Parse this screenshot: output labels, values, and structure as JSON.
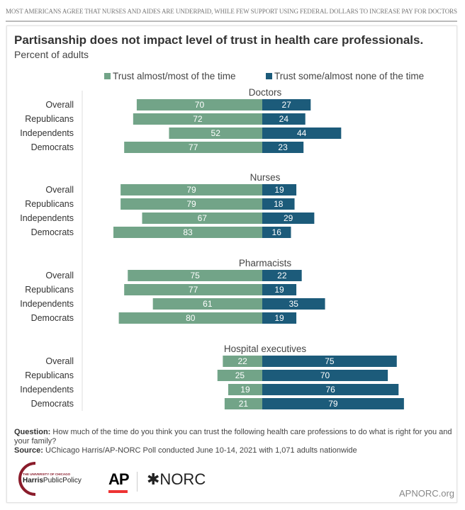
{
  "banner": "MOST AMERICANS AGREE THAT NURSES AND AIDES ARE UNDERPAID, WHILE FEW SUPPORT USING FEDERAL DOLLARS TO INCREASE PAY FOR DOCTORS",
  "chart_data": {
    "type": "bar",
    "title": "Partisanship does not impact level of trust in health care professionals.",
    "subtitle": "Percent of adults",
    "legend": [
      "Trust almost/most of the time",
      "Trust some/almost none of the time"
    ],
    "legend_placement": "top",
    "colors": {
      "trust": "#72a488",
      "distrust": "#1c5b7a"
    },
    "categories": [
      "Overall",
      "Republicans",
      "Independents",
      "Democrats"
    ],
    "groups": [
      {
        "name": "Doctors",
        "trust": [
          70,
          72,
          52,
          77
        ],
        "distrust": [
          27,
          24,
          44,
          23
        ]
      },
      {
        "name": "Nurses",
        "trust": [
          79,
          79,
          67,
          83
        ],
        "distrust": [
          19,
          18,
          29,
          16
        ]
      },
      {
        "name": "Pharmacists",
        "trust": [
          75,
          77,
          61,
          80
        ],
        "distrust": [
          22,
          19,
          35,
          19
        ]
      },
      {
        "name": "Hospital executives",
        "trust": [
          22,
          25,
          19,
          21
        ],
        "distrust": [
          75,
          70,
          76,
          79
        ]
      }
    ]
  },
  "footer": {
    "question_label": "Question:",
    "question": " How much of the time do you think you can trust the following health care professions to do what is right for you and your family?",
    "source_label": "Source:",
    "source": " UChicago Harris/AP-NORC Poll conducted June 10-14, 2021 with 1,071 adults nationwide",
    "logos": {
      "harris": "THE UNIVERSITY OF CHICAGO Harris Public Policy",
      "ap": "AP",
      "norc": "✱NORC"
    },
    "url": "APNORC.org"
  }
}
